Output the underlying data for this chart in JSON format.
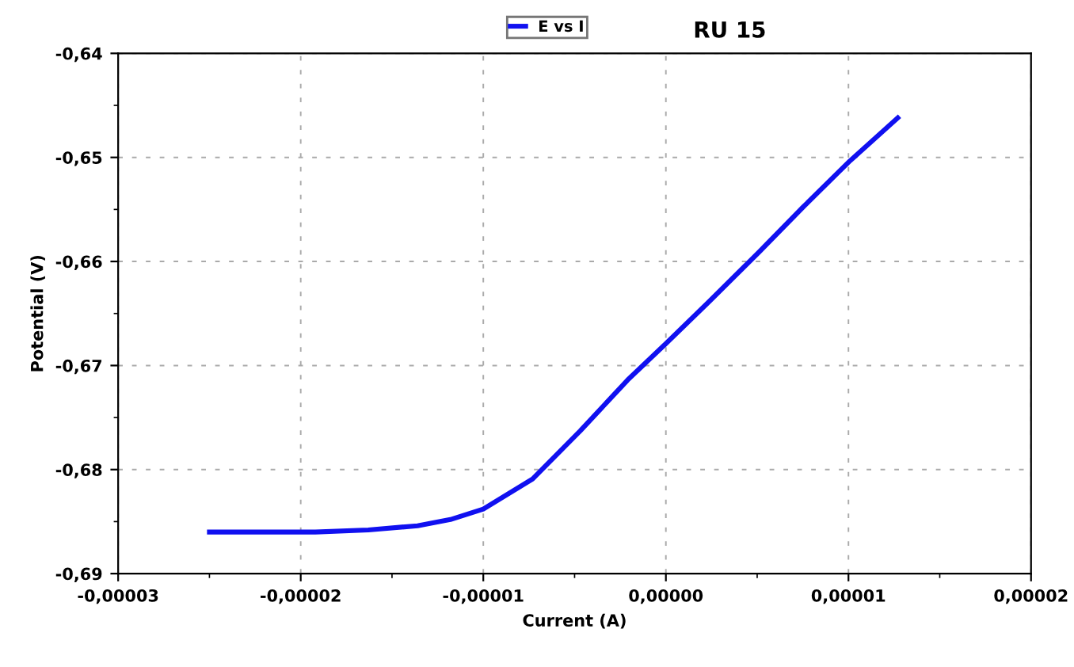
{
  "chart_data": {
    "type": "line",
    "title": "RU 15",
    "xlabel": "Current (A)",
    "ylabel": "Potential (V)",
    "x": [
      -2.5e-05,
      -1.92e-05,
      -1.63e-05,
      -1.36e-05,
      -1.18e-05,
      -1e-05,
      -7.3e-06,
      -4.7e-06,
      -2.1e-06,
      0,
      2.4e-06,
      5.1e-06,
      7.5e-06,
      1.01e-05,
      1.27e-05
    ],
    "series": [
      {
        "name": "E vs I",
        "color": "#1010f0",
        "values": [
          -0.686,
          -0.686,
          -0.6858,
          -0.6854,
          -0.6848,
          -0.6838,
          -0.6809,
          -0.6763,
          -0.6714,
          -0.6679,
          -0.6638,
          -0.6591,
          -0.6548,
          -0.6503,
          -0.6462
        ]
      }
    ],
    "xlim": [
      -3e-05,
      2e-05
    ],
    "xticks": [
      {
        "value": -3e-05,
        "label": "-0,00003"
      },
      {
        "value": -2e-05,
        "label": "-0,00002"
      },
      {
        "value": -1e-05,
        "label": "-0,00001"
      },
      {
        "value": 0,
        "label": "0,00000"
      },
      {
        "value": 1e-05,
        "label": "0,00001"
      },
      {
        "value": 2e-05,
        "label": "0,00002"
      }
    ],
    "ylim": [
      -0.69,
      -0.64
    ],
    "yticks": [
      {
        "value": -0.69,
        "label": "-0,69"
      },
      {
        "value": -0.68,
        "label": "-0,68"
      },
      {
        "value": -0.67,
        "label": "-0,67"
      },
      {
        "value": -0.66,
        "label": "-0,66"
      },
      {
        "value": -0.65,
        "label": "-0,65"
      },
      {
        "value": -0.64,
        "label": "-0,64"
      }
    ],
    "grid": true,
    "legend": "top",
    "marker": "none",
    "line_style": "solid"
  }
}
